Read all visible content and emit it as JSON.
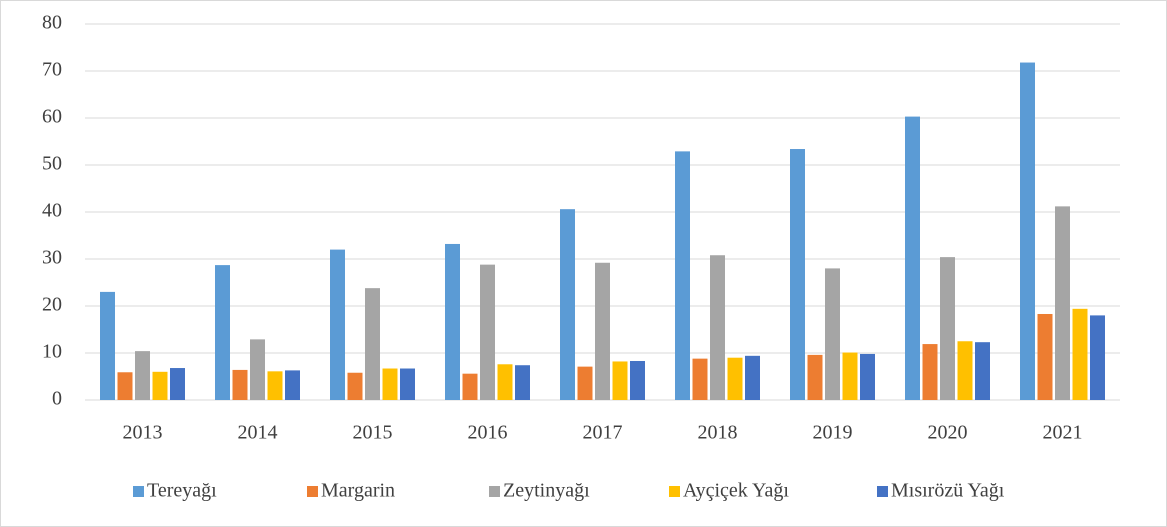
{
  "chart_data": {
    "type": "bar",
    "categories": [
      "2013",
      "2014",
      "2015",
      "2016",
      "2017",
      "2018",
      "2019",
      "2020",
      "2021"
    ],
    "series": [
      {
        "name": "Tereyağı",
        "color": "#5b9bd5",
        "values": [
          23,
          28.7,
          32,
          33.2,
          40.6,
          52.9,
          53.4,
          60.3,
          71.8
        ]
      },
      {
        "name": "Margarin",
        "color": "#ed7d31",
        "values": [
          5.9,
          6.4,
          5.8,
          5.6,
          7.1,
          8.8,
          9.6,
          11.9,
          18.3
        ]
      },
      {
        "name": "Zeytinyağı",
        "color": "#a5a5a5",
        "values": [
          10.4,
          12.9,
          23.8,
          28.8,
          29.2,
          30.8,
          28.0,
          30.4,
          41.2
        ]
      },
      {
        "name": "Ayçiçek Yağı",
        "color": "#ffc000",
        "values": [
          6.0,
          6.1,
          6.7,
          7.6,
          8.2,
          9.0,
          10.1,
          12.5,
          19.4
        ]
      },
      {
        "name": "Mısırözü Yağı",
        "color": "#4472c4",
        "values": [
          6.8,
          6.3,
          6.7,
          7.4,
          8.3,
          9.4,
          9.8,
          12.3,
          18.0
        ]
      }
    ],
    "ylim": [
      0,
      80
    ],
    "yticks": [
      0,
      10,
      20,
      30,
      40,
      50,
      60,
      70,
      80
    ],
    "grid": true,
    "legend": "bottom"
  }
}
